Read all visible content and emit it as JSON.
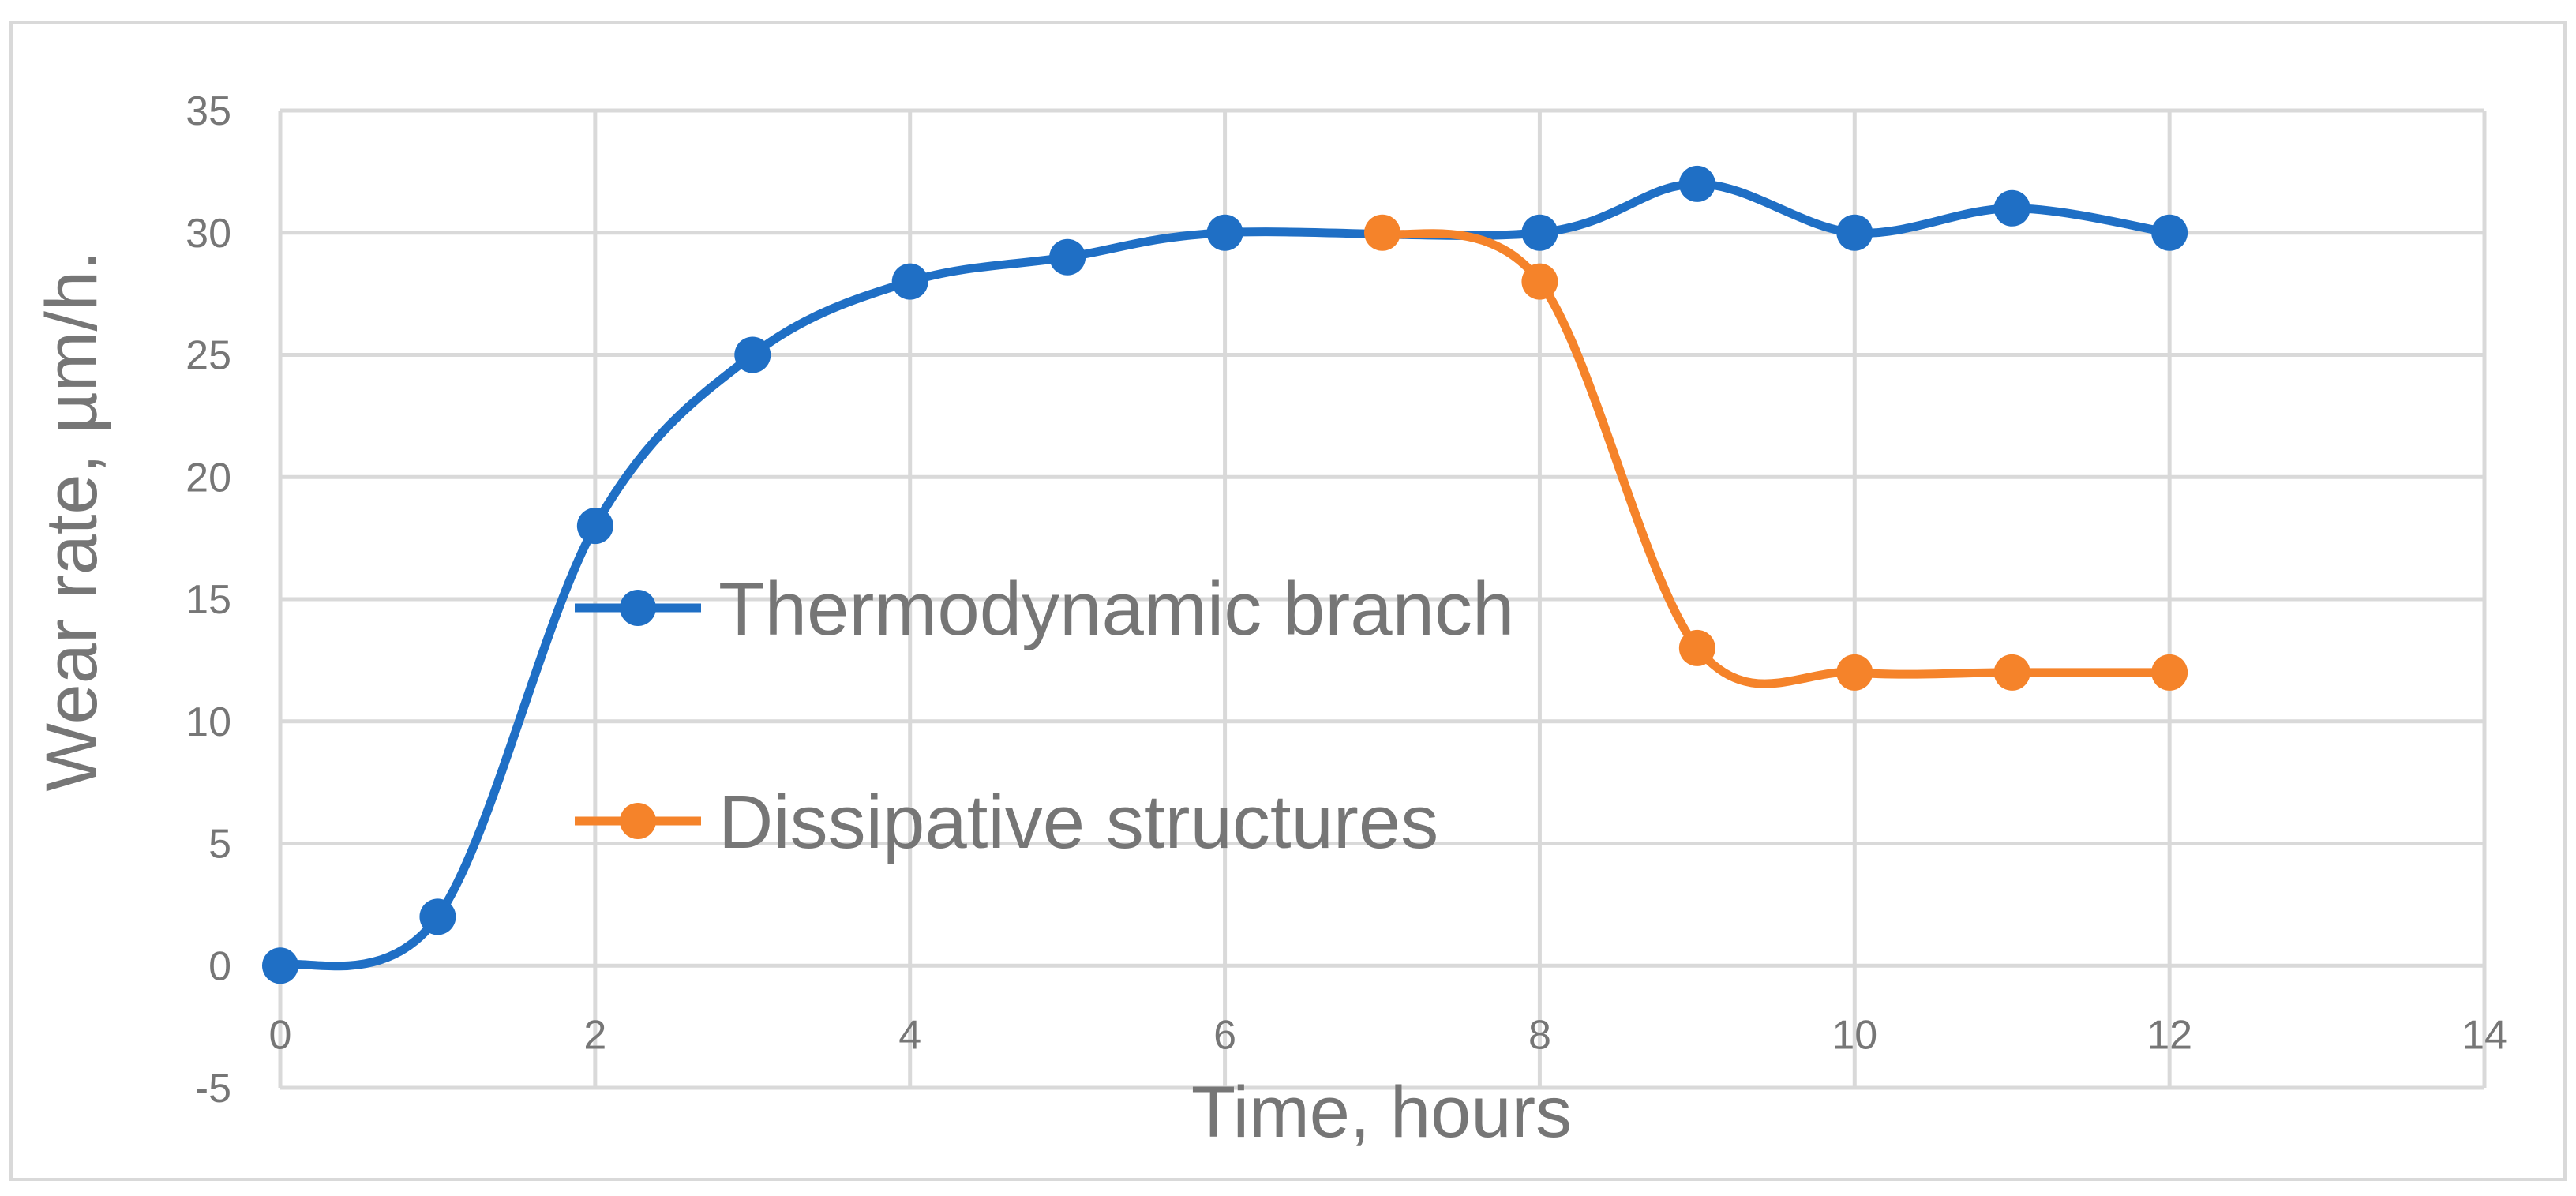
{
  "chart_data": {
    "type": "line",
    "smooth": true,
    "xlabel": "Time, hours",
    "ylabel": "Wear rate, µm/h.",
    "xlim": [
      0,
      14
    ],
    "ylim": [
      -5,
      35
    ],
    "xticks": [
      0,
      2,
      4,
      6,
      8,
      10,
      12,
      14
    ],
    "yticks": [
      -5,
      0,
      5,
      10,
      15,
      20,
      25,
      30,
      35
    ],
    "grid": true,
    "legend_position": "left-center",
    "series": [
      {
        "name": "Thermodynamic branch",
        "color": "#1f6fc5",
        "x": [
          0,
          1,
          2,
          3,
          4,
          5,
          6,
          8,
          9,
          10,
          11,
          12
        ],
        "y": [
          0,
          2,
          18,
          25,
          28,
          29,
          30,
          30,
          32,
          30,
          31,
          30
        ]
      },
      {
        "name": "Dissipative structures",
        "color": "#f5832a",
        "x": [
          7,
          8,
          9,
          10,
          11,
          12
        ],
        "y": [
          30,
          28,
          13,
          12,
          12,
          12
        ]
      }
    ]
  }
}
